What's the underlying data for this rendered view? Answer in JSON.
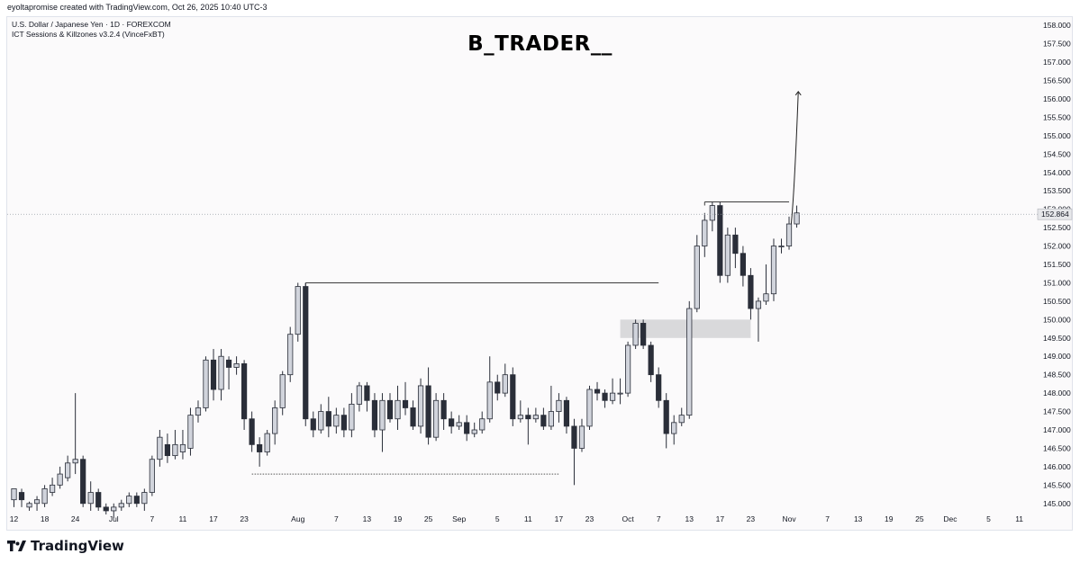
{
  "header": {
    "credit": "eyoltapromise created with TradingView.com, Oct 26, 2025 10:40 UTC-3",
    "symbol_line": "U.S. Dollar / Japanese Yen · 1D · FOREXCOM",
    "indicator_line": "ICT Sessions & Killzones v3.2.4 (VinceFxBT)",
    "watermark": "B_TRADER__"
  },
  "footer": {
    "brand": "TradingView"
  },
  "chart_data": {
    "type": "candlestick",
    "ylim": [
      144.75,
      158.25
    ],
    "y_ticks": [
      "145.000",
      "145.500",
      "146.000",
      "146.500",
      "147.000",
      "147.500",
      "148.000",
      "148.500",
      "149.000",
      "149.500",
      "150.000",
      "150.500",
      "151.000",
      "151.500",
      "152.000",
      "152.500",
      "153.000",
      "153.500",
      "154.000",
      "154.500",
      "155.000",
      "155.500",
      "156.000",
      "156.500",
      "157.000",
      "157.500",
      "158.000"
    ],
    "x_ticks": [
      {
        "label": "12",
        "i": 0
      },
      {
        "label": "18",
        "i": 4
      },
      {
        "label": "24",
        "i": 8
      },
      {
        "label": "Jul",
        "i": 13
      },
      {
        "label": "7",
        "i": 18
      },
      {
        "label": "11",
        "i": 22
      },
      {
        "label": "17",
        "i": 26
      },
      {
        "label": "23",
        "i": 30
      },
      {
        "label": "Aug",
        "i": 37
      },
      {
        "label": "7",
        "i": 42
      },
      {
        "label": "13",
        "i": 46
      },
      {
        "label": "19",
        "i": 50
      },
      {
        "label": "25",
        "i": 54
      },
      {
        "label": "Sep",
        "i": 58
      },
      {
        "label": "5",
        "i": 63
      },
      {
        "label": "11",
        "i": 67
      },
      {
        "label": "17",
        "i": 71
      },
      {
        "label": "23",
        "i": 75
      },
      {
        "label": "Oct",
        "i": 80
      },
      {
        "label": "7",
        "i": 84
      },
      {
        "label": "13",
        "i": 88
      },
      {
        "label": "17",
        "i": 92
      },
      {
        "label": "23",
        "i": 96
      },
      {
        "label": "Nov",
        "i": 101
      },
      {
        "label": "7",
        "i": 106
      },
      {
        "label": "13",
        "i": 110
      },
      {
        "label": "19",
        "i": 114
      },
      {
        "label": "25",
        "i": 118
      },
      {
        "label": "Dec",
        "i": 122
      },
      {
        "label": "5",
        "i": 127
      },
      {
        "label": "11",
        "i": 131
      }
    ],
    "last_price": "152.864",
    "last_price_value": 152.864,
    "candles": [
      [
        145.1,
        145.4,
        144.9,
        145.3
      ],
      [
        145.3,
        145.1,
        144.9,
        145.4
      ],
      [
        144.9,
        145.0,
        144.8,
        145.05
      ],
      [
        145.0,
        145.1,
        144.8,
        145.2
      ],
      [
        145.0,
        145.4,
        144.9,
        145.5
      ],
      [
        145.3,
        145.5,
        145.2,
        145.7
      ],
      [
        145.5,
        145.8,
        145.4,
        146.0
      ],
      [
        145.7,
        146.1,
        145.6,
        146.3
      ],
      [
        146.1,
        146.2,
        145.8,
        148.0
      ],
      [
        146.2,
        145.0,
        144.9,
        146.3
      ],
      [
        145.0,
        145.3,
        144.8,
        145.6
      ],
      [
        145.3,
        144.9,
        144.8,
        145.4
      ],
      [
        144.9,
        144.8,
        144.7,
        145.0
      ],
      [
        144.8,
        144.9,
        144.6,
        145.0
      ],
      [
        144.9,
        145.0,
        144.8,
        145.1
      ],
      [
        145.0,
        145.2,
        144.9,
        145.3
      ],
      [
        145.2,
        145.0,
        144.9,
        145.3
      ],
      [
        145.0,
        145.3,
        144.8,
        145.4
      ],
      [
        145.3,
        146.2,
        145.2,
        146.3
      ],
      [
        146.2,
        146.8,
        146.0,
        147.0
      ],
      [
        146.6,
        146.3,
        146.1,
        146.9
      ],
      [
        146.3,
        146.6,
        146.2,
        147.0
      ],
      [
        146.4,
        146.6,
        146.2,
        147.0
      ],
      [
        146.5,
        147.4,
        146.3,
        147.6
      ],
      [
        147.4,
        147.6,
        147.2,
        147.8
      ],
      [
        147.6,
        148.9,
        147.5,
        149.0
      ],
      [
        148.9,
        148.1,
        147.8,
        149.2
      ],
      [
        148.1,
        149.0,
        147.8,
        149.2
      ],
      [
        148.9,
        148.7,
        148.1,
        149.0
      ],
      [
        148.7,
        148.8,
        148.5,
        149.0
      ],
      [
        148.8,
        147.3,
        147.0,
        148.9
      ],
      [
        147.3,
        146.6,
        146.4,
        147.5
      ],
      [
        146.6,
        146.4,
        146.0,
        146.8
      ],
      [
        146.4,
        146.9,
        146.3,
        147.0
      ],
      [
        146.9,
        147.6,
        146.6,
        147.8
      ],
      [
        147.6,
        148.5,
        147.4,
        148.6
      ],
      [
        148.5,
        149.6,
        148.3,
        149.8
      ],
      [
        149.6,
        150.9,
        149.4,
        151.0
      ],
      [
        150.9,
        147.3,
        147.1,
        151.0
      ],
      [
        147.3,
        147.0,
        146.8,
        147.5
      ],
      [
        147.0,
        147.5,
        146.9,
        147.7
      ],
      [
        147.5,
        147.1,
        146.8,
        147.9
      ],
      [
        147.1,
        147.4,
        146.9,
        147.6
      ],
      [
        147.4,
        147.0,
        146.8,
        147.6
      ],
      [
        147.0,
        147.7,
        146.8,
        148.0
      ],
      [
        147.7,
        148.2,
        147.5,
        148.3
      ],
      [
        148.2,
        147.8,
        147.5,
        148.3
      ],
      [
        147.8,
        147.0,
        146.8,
        148.0
      ],
      [
        147.0,
        147.8,
        146.4,
        148.0
      ],
      [
        147.8,
        147.3,
        147.2,
        148.0
      ],
      [
        147.3,
        147.8,
        147.0,
        148.2
      ],
      [
        147.8,
        147.6,
        147.4,
        148.3
      ],
      [
        147.6,
        147.1,
        147.0,
        147.8
      ],
      [
        147.1,
        148.2,
        146.9,
        148.4
      ],
      [
        148.2,
        146.8,
        146.6,
        148.7
      ],
      [
        146.8,
        147.8,
        146.7,
        148.0
      ],
      [
        147.8,
        147.3,
        147.0,
        148.0
      ],
      [
        147.3,
        147.1,
        146.9,
        147.5
      ],
      [
        147.1,
        147.2,
        147.0,
        147.4
      ],
      [
        147.2,
        146.9,
        146.7,
        147.4
      ],
      [
        146.9,
        147.0,
        146.8,
        147.2
      ],
      [
        147.0,
        147.3,
        146.9,
        147.5
      ],
      [
        147.3,
        148.3,
        147.2,
        149.0
      ],
      [
        148.3,
        148.0,
        147.8,
        148.5
      ],
      [
        148.0,
        148.5,
        147.9,
        148.8
      ],
      [
        148.5,
        147.3,
        147.1,
        148.7
      ],
      [
        147.3,
        147.4,
        147.2,
        147.8
      ],
      [
        147.4,
        147.3,
        146.6,
        147.6
      ],
      [
        147.3,
        147.4,
        147.2,
        147.6
      ],
      [
        147.4,
        147.1,
        147.0,
        147.6
      ],
      [
        147.1,
        147.5,
        147.0,
        148.2
      ],
      [
        147.5,
        147.8,
        147.2,
        148.0
      ],
      [
        147.8,
        147.1,
        146.9,
        147.9
      ],
      [
        147.1,
        146.5,
        145.5,
        147.3
      ],
      [
        146.5,
        147.1,
        146.4,
        147.3
      ],
      [
        147.1,
        148.1,
        147.0,
        148.2
      ],
      [
        148.1,
        148.0,
        147.8,
        148.3
      ],
      [
        148.0,
        147.8,
        147.6,
        148.1
      ],
      [
        147.8,
        148.0,
        147.7,
        148.4
      ],
      [
        148.0,
        148.0,
        147.7,
        148.4
      ],
      [
        148.0,
        149.3,
        147.9,
        149.4
      ],
      [
        149.3,
        149.9,
        149.2,
        150.0
      ],
      [
        149.9,
        149.3,
        149.2,
        150.0
      ],
      [
        149.3,
        148.5,
        148.3,
        149.4
      ],
      [
        148.5,
        147.8,
        147.6,
        148.7
      ],
      [
        147.8,
        146.9,
        146.5,
        148.0
      ],
      [
        146.9,
        147.2,
        146.6,
        147.4
      ],
      [
        147.2,
        147.4,
        147.1,
        147.6
      ],
      [
        147.4,
        150.3,
        147.3,
        150.5
      ],
      [
        150.3,
        152.0,
        150.2,
        152.3
      ],
      [
        152.0,
        152.7,
        151.7,
        152.9
      ],
      [
        152.7,
        153.1,
        152.4,
        153.2
      ],
      [
        153.1,
        151.2,
        151.0,
        153.2
      ],
      [
        151.2,
        152.3,
        151.0,
        152.5
      ],
      [
        152.3,
        151.8,
        151.4,
        152.5
      ],
      [
        151.8,
        151.2,
        150.9,
        152.0
      ],
      [
        151.2,
        150.3,
        150.0,
        151.4
      ],
      [
        150.3,
        150.5,
        149.4,
        150.6
      ],
      [
        150.5,
        150.7,
        150.4,
        151.5
      ],
      [
        150.7,
        152.0,
        150.5,
        152.2
      ],
      [
        152.0,
        152.0,
        151.8,
        152.2
      ],
      [
        152.0,
        152.6,
        151.9,
        152.8
      ],
      [
        152.6,
        152.9,
        152.5,
        153.1
      ]
    ],
    "annotations": [
      {
        "type": "hline",
        "from": 38,
        "to": 84,
        "y": 151.0
      },
      {
        "type": "hline",
        "from": 90,
        "to": 101,
        "y": 153.2
      },
      {
        "type": "dotted-hline",
        "from": 31,
        "to": 71,
        "y": 145.8
      },
      {
        "type": "zone",
        "from": 79,
        "to": 96,
        "y1": 149.5,
        "y2": 150.0
      },
      {
        "type": "projection-arrow",
        "points": [
          [
            101,
            152.2
          ],
          [
            101.4,
            152.5
          ],
          [
            101.8,
            154
          ],
          [
            102.2,
            156.2
          ]
        ]
      }
    ]
  }
}
